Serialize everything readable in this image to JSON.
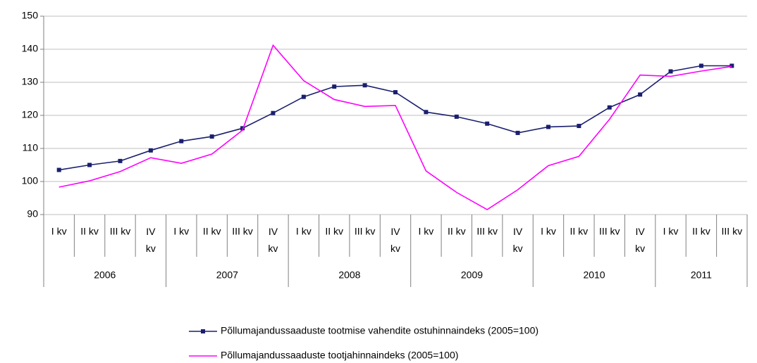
{
  "chart_data": {
    "type": "line",
    "categories": [
      "I kv",
      "II kv",
      "III kv",
      "IV kv",
      "I kv",
      "II kv",
      "III kv",
      "IV kv",
      "I kv",
      "II kv",
      "III kv",
      "IV kv",
      "I kv",
      "II kv",
      "III kv",
      "IV kv",
      "I kv",
      "II kv",
      "III kv",
      "IV kv",
      "I kv",
      "II kv",
      "III kv"
    ],
    "years": [
      "2006",
      "2007",
      "2008",
      "2009",
      "2010",
      "2011"
    ],
    "series": [
      {
        "name": "Põllumajandussaaduste tootmise vahendite ostuhinnaindeks (2005=100)",
        "color": "#1a1f6e",
        "marker": "square",
        "values": [
          103.5,
          105,
          106.2,
          109.4,
          112.2,
          113.6,
          116.1,
          120.7,
          125.6,
          128.7,
          129.1,
          127.0,
          121.0,
          119.6,
          117.5,
          114.7,
          116.5,
          116.8,
          122.4,
          126.3,
          133.3,
          135.0,
          135.0
        ]
      },
      {
        "name": "Põllumajandussaaduste tootjahinnaindeks (2005=100)",
        "color": "#ff00ff",
        "values": [
          98.3,
          100.2,
          103.0,
          107.2,
          105.5,
          108.3,
          115.5,
          141.2,
          130.5,
          124.8,
          122.7,
          123.0,
          103.2,
          96.7,
          91.5,
          97.5,
          104.8,
          107.6,
          118.8,
          132.2,
          131.8,
          133.4,
          134.8
        ]
      }
    ],
    "ylim": [
      90,
      150
    ],
    "yticks": [
      90,
      100,
      110,
      120,
      130,
      140,
      150
    ],
    "grid": true,
    "legend": "bottom"
  }
}
